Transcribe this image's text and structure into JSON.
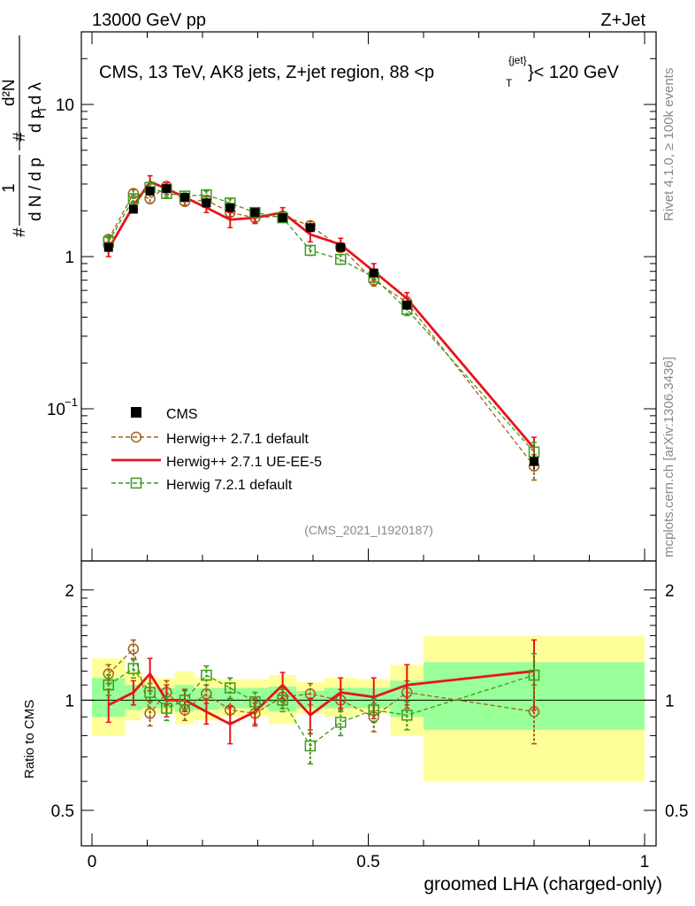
{
  "header": {
    "left": "13000 GeV pp",
    "right": "Z+Jet"
  },
  "side": {
    "rivet": "Rivet 4.1.0, ≥ 100k events",
    "mcplots": "mcplots.cern.ch [arXiv:1306.3436]"
  },
  "main_title": "CMS, 13 TeV, AK8 jets, Z+jet region, 88 <p",
  "main_title_sup": "{jet}",
  "main_title_sub": "T",
  "main_title_tail": "}< 120 GeV",
  "analysis": "(CMS_2021_I1920187)",
  "colors": {
    "cms": "#000000",
    "h271": "#a0621a",
    "ueee5": "#e8141b",
    "h721": "#3d9a1b",
    "band_outer": "#ffff99",
    "band_inner": "#99ff99"
  },
  "chart_data": {
    "type": "line",
    "xlabel": "groomed LHA (charged-only)",
    "ylabel_main": "d N / d p_T  ...  d²N / d p_T dλ",
    "ylabel_ratio": "Ratio to CMS",
    "xlim": [
      0,
      1
    ],
    "ylim_main": [
      0.01,
      30
    ],
    "ylim_ratio": [
      0.4,
      2.4
    ],
    "xticks": [
      "0",
      "0.5",
      "1"
    ],
    "yticks_main": [
      "10^{-1}",
      "1",
      "10"
    ],
    "yticks_ratio": [
      "0.5",
      "1",
      "2"
    ],
    "legend": [
      "CMS",
      "Herwig++ 2.7.1 default",
      "Herwig++ 2.7.1 UE-EE-5",
      "Herwig 7.2.1 default"
    ],
    "x": [
      0.03,
      0.075,
      0.105,
      0.135,
      0.168,
      0.207,
      0.25,
      0.295,
      0.345,
      0.395,
      0.45,
      0.51,
      0.57,
      0.8
    ],
    "bin_edges": [
      0,
      0.06,
      0.09,
      0.12,
      0.15,
      0.185,
      0.23,
      0.27,
      0.32,
      0.37,
      0.42,
      0.48,
      0.54,
      0.6,
      1.0
    ],
    "series": [
      {
        "name": "CMS",
        "values": [
          1.15,
          2.05,
          2.7,
          2.8,
          2.45,
          2.25,
          2.1,
          1.95,
          1.8,
          1.55,
          1.15,
          0.78,
          0.48,
          0.045
        ],
        "err": [
          0.08,
          0.1,
          0.12,
          0.12,
          0.1,
          0.1,
          0.1,
          0.08,
          0.08,
          0.08,
          0.06,
          0.05,
          0.03,
          0.005
        ]
      },
      {
        "name": "Herwig++ 2.7.1 default",
        "values": [
          1.3,
          2.6,
          2.4,
          2.9,
          2.3,
          2.35,
          1.95,
          1.8,
          1.85,
          1.6,
          1.15,
          0.7,
          0.5,
          0.042
        ],
        "err": [
          0.08,
          0.15,
          0.15,
          0.15,
          0.12,
          0.12,
          0.12,
          0.1,
          0.1,
          0.1,
          0.08,
          0.06,
          0.04,
          0.008
        ]
      },
      {
        "name": "Herwig++ 2.7.1 UE-EE-5",
        "values": [
          1.12,
          2.15,
          3.1,
          2.8,
          2.45,
          2.1,
          1.75,
          1.8,
          1.95,
          1.4,
          1.2,
          0.8,
          0.53,
          0.055
        ],
        "err": [
          0.12,
          0.15,
          0.3,
          0.25,
          0.15,
          0.15,
          0.2,
          0.15,
          0.15,
          0.15,
          0.12,
          0.1,
          0.05,
          0.01
        ]
      },
      {
        "name": "Herwig 7.2.1 default",
        "values": [
          1.25,
          2.4,
          2.85,
          2.6,
          2.5,
          2.55,
          2.25,
          1.95,
          1.8,
          1.1,
          0.96,
          0.73,
          0.45,
          0.052
        ],
        "err": [
          0.08,
          0.12,
          0.15,
          0.15,
          0.12,
          0.15,
          0.15,
          0.1,
          0.1,
          0.08,
          0.07,
          0.05,
          0.04,
          0.008
        ]
      }
    ],
    "ratio_series": [
      {
        "name": "Herwig++ 2.7.1 default",
        "values": [
          1.18,
          1.38,
          0.92,
          1.05,
          0.94,
          1.04,
          0.94,
          0.92,
          1.02,
          1.04,
          1.0,
          0.9,
          1.05,
          0.93
        ],
        "err": [
          0.07,
          0.08,
          0.07,
          0.08,
          0.06,
          0.06,
          0.07,
          0.06,
          0.07,
          0.07,
          0.07,
          0.08,
          0.08,
          0.17
        ]
      },
      {
        "name": "Herwig++ 2.7.1 UE-EE-5",
        "values": [
          0.97,
          1.05,
          1.18,
          1.0,
          1.0,
          0.93,
          0.86,
          0.93,
          1.1,
          0.91,
          1.05,
          1.02,
          1.1,
          1.2
        ],
        "err": [
          0.1,
          0.08,
          0.12,
          0.1,
          0.07,
          0.07,
          0.1,
          0.08,
          0.09,
          0.1,
          0.1,
          0.13,
          0.15,
          0.26
        ]
      },
      {
        "name": "Herwig 7.2.1 default",
        "values": [
          1.1,
          1.22,
          1.05,
          0.95,
          1.0,
          1.17,
          1.08,
          0.99,
          1.0,
          0.75,
          0.87,
          0.94,
          0.91,
          1.17
        ],
        "err": [
          0.07,
          0.07,
          0.06,
          0.07,
          0.06,
          0.07,
          0.07,
          0.06,
          0.07,
          0.08,
          0.07,
          0.07,
          0.08,
          0.17
        ]
      }
    ],
    "band_outer": [
      [
        0.8,
        1.3
      ],
      [
        0.88,
        1.2
      ],
      [
        0.92,
        1.15
      ],
      [
        0.92,
        1.15
      ],
      [
        0.86,
        1.2
      ],
      [
        0.88,
        1.15
      ],
      [
        0.9,
        1.14
      ],
      [
        0.9,
        1.14
      ],
      [
        0.86,
        1.17
      ],
      [
        0.92,
        1.12
      ],
      [
        0.9,
        1.15
      ],
      [
        0.92,
        1.14
      ],
      [
        0.8,
        1.25
      ],
      [
        0.6,
        1.5
      ]
    ],
    "band_inner": [
      [
        0.9,
        1.15
      ],
      [
        0.94,
        1.1
      ],
      [
        0.95,
        1.08
      ],
      [
        0.95,
        1.08
      ],
      [
        0.93,
        1.1
      ],
      [
        0.94,
        1.08
      ],
      [
        0.95,
        1.08
      ],
      [
        0.95,
        1.08
      ],
      [
        0.93,
        1.09
      ],
      [
        0.95,
        1.06
      ],
      [
        0.95,
        1.08
      ],
      [
        0.95,
        1.08
      ],
      [
        0.9,
        1.13
      ],
      [
        0.83,
        1.27
      ]
    ]
  }
}
